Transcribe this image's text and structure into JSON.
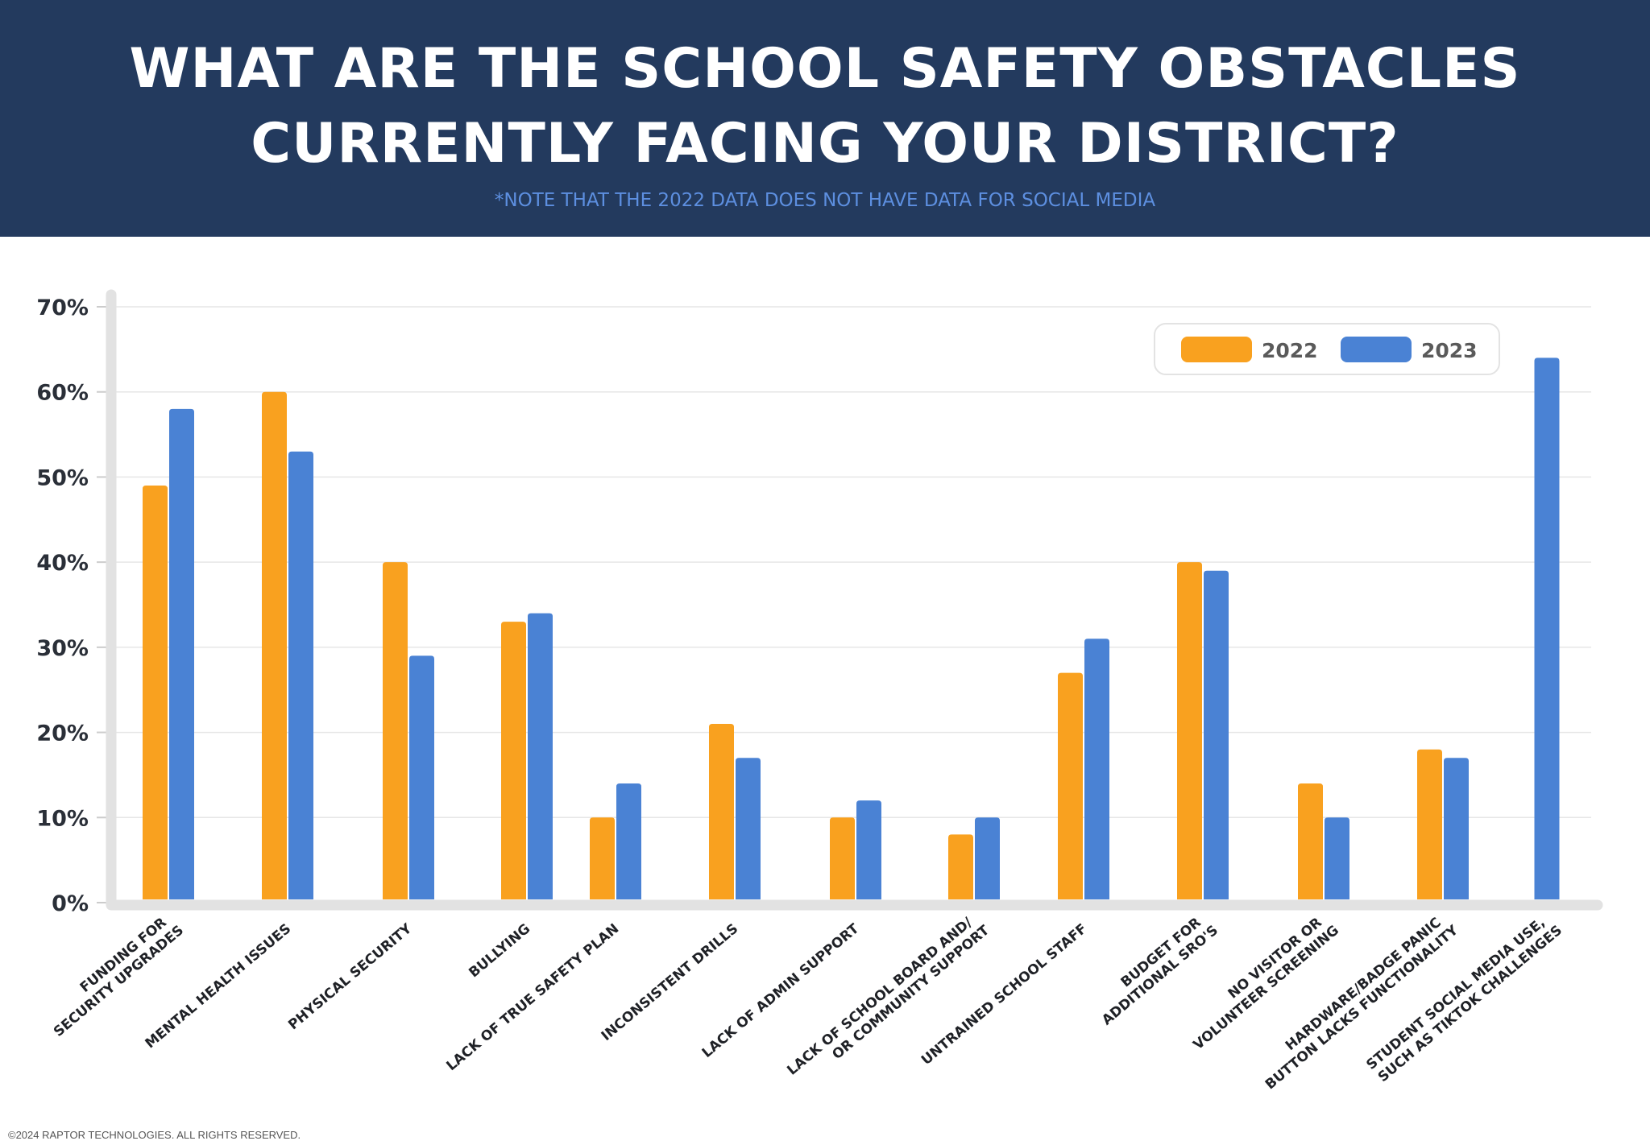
{
  "header": {
    "title_line1": "WHAT ARE THE SCHOOL SAFETY OBSTACLES",
    "title_line2": "CURRENTLY FACING YOUR DISTRICT?",
    "note": "*NOTE THAT THE 2022 DATA DOES NOT HAVE DATA FOR SOCIAL MEDIA"
  },
  "footer": "©2024 RAPTOR TECHNOLOGIES. ALL RIGHTS RESERVED.",
  "colors": {
    "header_bg": "#233a5e",
    "series_2022": "#f9a11f",
    "series_2023": "#4a82d4",
    "note": "#5d8fe0"
  },
  "chart_data": {
    "type": "bar",
    "title": "WHAT ARE THE SCHOOL SAFETY OBSTACLES CURRENTLY FACING YOUR DISTRICT?",
    "ylim": [
      0,
      70
    ],
    "yticks": [
      "0%",
      "10%",
      "20%",
      "30%",
      "40%",
      "50%",
      "60%",
      "70%"
    ],
    "grid": true,
    "legend_position": "top-right",
    "categories": [
      [
        "FUNDING FOR",
        "SECURITY UPGRADES"
      ],
      [
        "MENTAL HEALTH ISSUES"
      ],
      [
        "PHYSICAL SECURITY"
      ],
      [
        "BULLYING"
      ],
      [
        "LACK OF TRUE SAFETY PLAN"
      ],
      [
        "INCONSISTENT DRILLS"
      ],
      [
        "LACK OF ADMIN SUPPORT"
      ],
      [
        "LACK OF SCHOOL BOARD AND/",
        "OR COMMUNITY SUPPORT"
      ],
      [
        "UNTRAINED SCHOOL STAFF"
      ],
      [
        "BUDGET FOR",
        "ADDITIONAL SRO'S"
      ],
      [
        "NO VISITOR OR",
        "VOLUNTEER SCREENING"
      ],
      [
        "HARDWARE/BADGE PANIC",
        "BUTTON LACKS FUNCTIONALITY"
      ],
      [
        "STUDENT SOCIAL MEDIA USE,",
        "SUCH AS TIKTOK CHALLENGES"
      ]
    ],
    "series": [
      {
        "name": "2022",
        "color": "#f9a11f",
        "values": [
          49,
          60,
          40,
          33,
          10,
          21,
          10,
          8,
          27,
          40,
          14,
          18,
          null
        ]
      },
      {
        "name": "2023",
        "color": "#4a82d4",
        "values": [
          58,
          53,
          29,
          34,
          14,
          17,
          12,
          10,
          31,
          39,
          10,
          17,
          64
        ]
      }
    ]
  }
}
